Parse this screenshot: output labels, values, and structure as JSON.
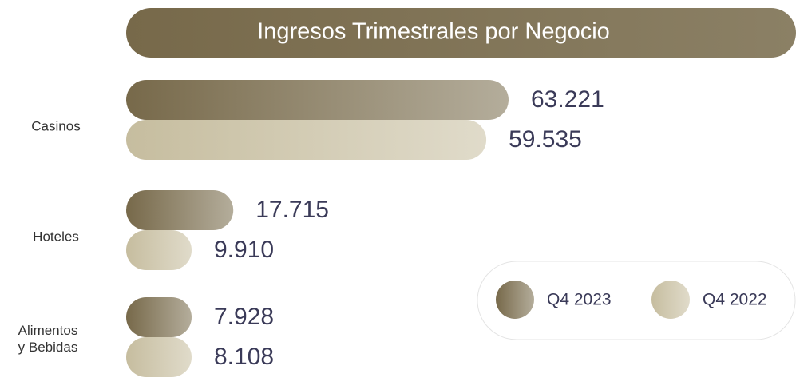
{
  "chart_data": {
    "type": "bar",
    "orientation": "horizontal",
    "title": "Ingresos Trimestrales por Negocio",
    "categories": [
      "Casinos",
      "Hoteles",
      "Alimentos\ny Bebidas"
    ],
    "series": [
      {
        "name": "Q4 2023",
        "color": "#77694a",
        "values": [
          63221,
          17715,
          7928
        ],
        "value_labels": [
          "63.221",
          "17.715",
          "7.928"
        ]
      },
      {
        "name": "Q4 2022",
        "color": "#c6bd9f",
        "values": [
          59535,
          9910,
          8108
        ],
        "value_labels": [
          "59.535",
          "9.910",
          "8.108"
        ]
      }
    ]
  }
}
